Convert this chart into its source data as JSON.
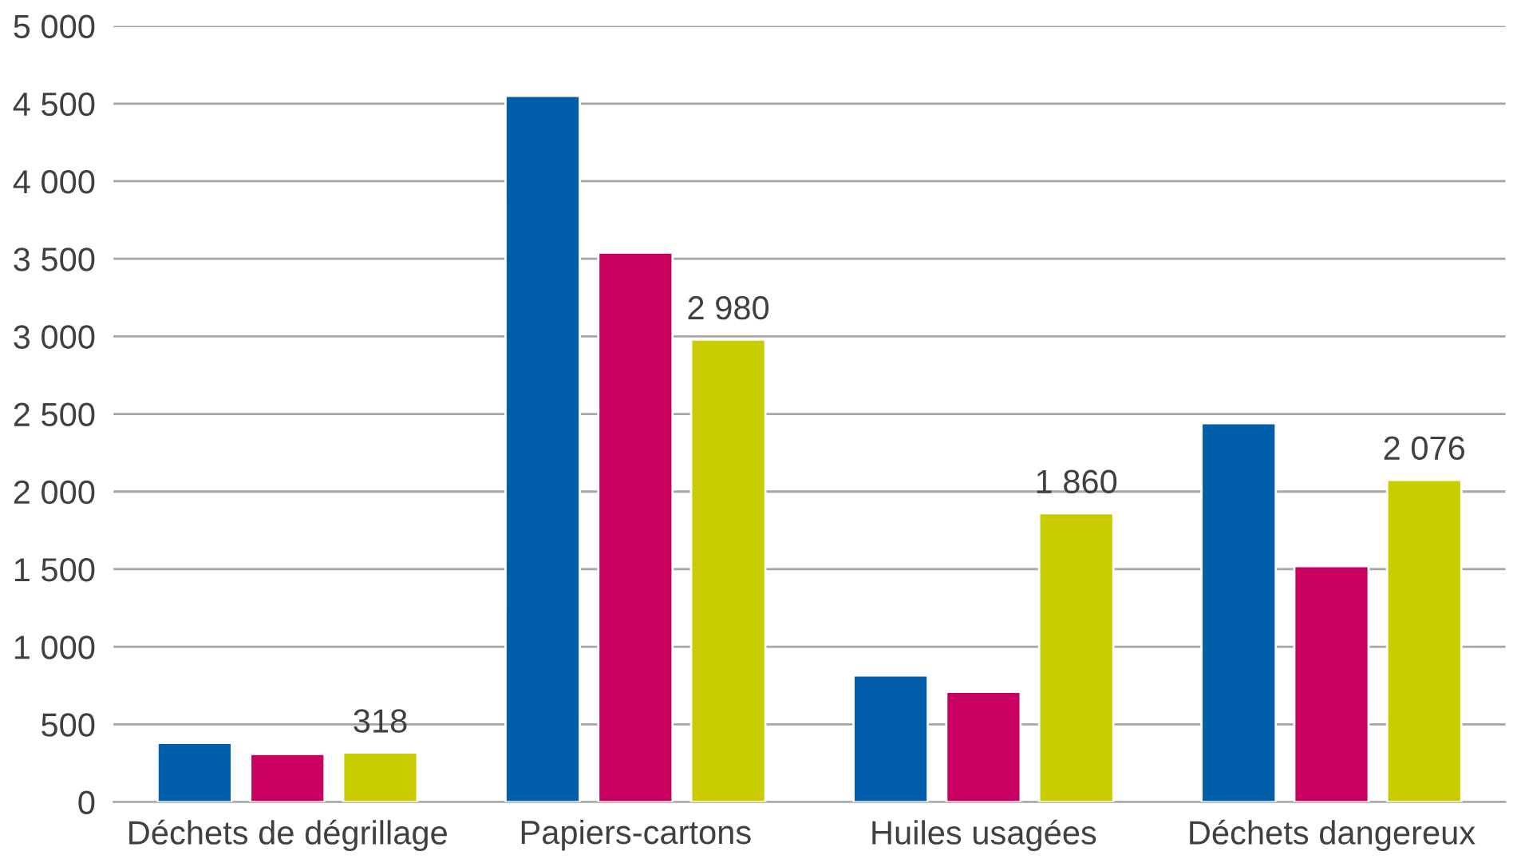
{
  "chart_data": {
    "type": "bar",
    "categories": [
      "Déchets de dégrillage",
      "Papiers-cartons",
      "Huiles usagées",
      "Déchets dangereux"
    ],
    "series": [
      {
        "color": "#005eaa",
        "values": [
          380,
          4550,
          815,
          2440
        ]
      },
      {
        "color": "#c8005f",
        "values": [
          310,
          3540,
          710,
          1520
        ]
      },
      {
        "color": "#c8cc00",
        "values": [
          318,
          2980,
          1860,
          2076
        ],
        "value_labels": [
          "318",
          "2 980",
          "1 860",
          "2 076"
        ]
      }
    ],
    "ylim": [
      0,
      5000
    ],
    "yticks": [
      {
        "value": 0,
        "label": "0"
      },
      {
        "value": 500,
        "label": "500"
      },
      {
        "value": 1000,
        "label": "1 000"
      },
      {
        "value": 1500,
        "label": "1 500"
      },
      {
        "value": 2000,
        "label": "2 000"
      },
      {
        "value": 2500,
        "label": "2 500"
      },
      {
        "value": 3000,
        "label": "3 000"
      },
      {
        "value": 3500,
        "label": "3 500"
      },
      {
        "value": 4000,
        "label": "4 000"
      },
      {
        "value": 4500,
        "label": "4 500"
      },
      {
        "value": 5000,
        "label": "5 000"
      }
    ],
    "grid": "y",
    "legend": false
  }
}
